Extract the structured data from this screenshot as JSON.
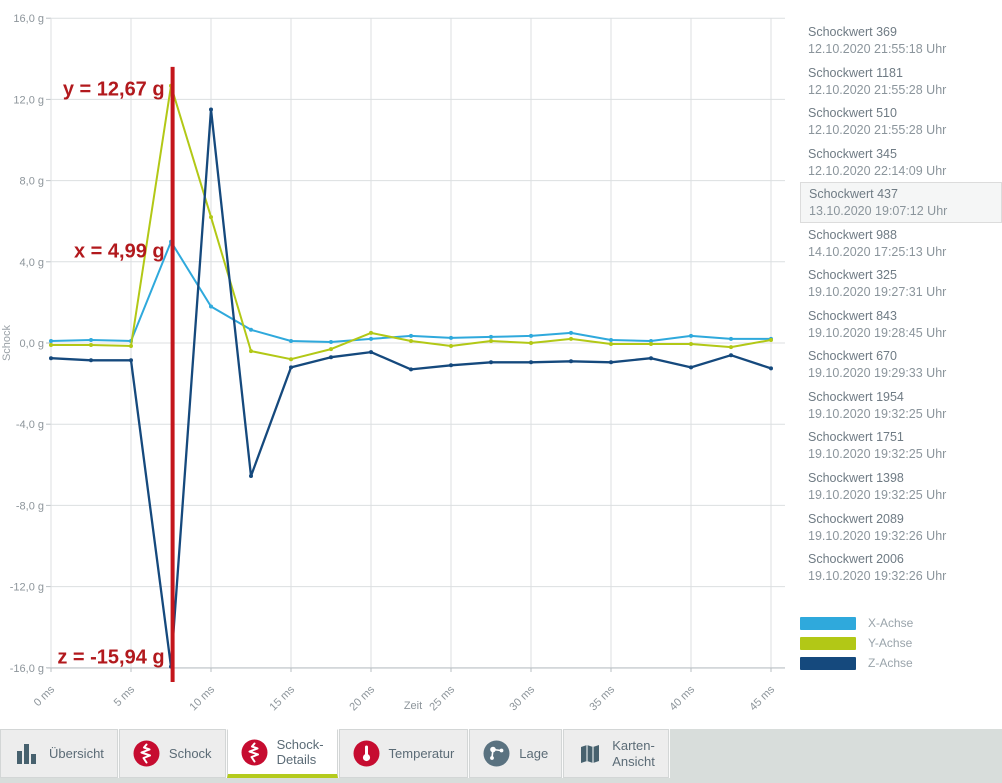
{
  "theme": {
    "accent_green": "#b4cb1d",
    "icon_red": "#c60c30",
    "icon_slate": "#5a7280",
    "icon_bars": "#47616e",
    "annotation_red": "#b2191d",
    "grid_color": "#dcdfe1",
    "axis_color": "#b9bfc3",
    "tick_label_color": "#8d959b"
  },
  "chart_data": {
    "type": "line",
    "title": "",
    "xlabel": "Zeit",
    "ylabel": "Schock",
    "x_unit": "ms",
    "y_unit": "g",
    "xlim": [
      0,
      45
    ],
    "ylim": [
      -16,
      16
    ],
    "grid": true,
    "legend_position": "right-bottom",
    "x_ticks": [
      "0 ms",
      "5 ms",
      "10 ms",
      "15 ms",
      "20 ms",
      "25 ms",
      "30 ms",
      "35 ms",
      "40 ms",
      "45 ms"
    ],
    "y_ticks": [
      "16,0 g",
      "12,0 g",
      "8,0 g",
      "4,0 g",
      "0,0 g",
      "-4,0 g",
      "-8,0 g",
      "-12,0 g",
      "-16,0 g"
    ],
    "y_tick_values": [
      16,
      12,
      8,
      4,
      0,
      -4,
      -8,
      -12,
      -16
    ],
    "x_tick_values": [
      0,
      5,
      10,
      15,
      20,
      25,
      30,
      35,
      40,
      45
    ],
    "x": [
      0,
      2.5,
      5,
      7.5,
      10,
      12.5,
      15,
      17.5,
      20,
      22.5,
      25,
      27.5,
      30,
      32.5,
      35,
      37.5,
      40,
      42.5,
      45
    ],
    "series": [
      {
        "name": "X-Achse",
        "color": "#2fa9dc",
        "stroke_width": 2,
        "values": [
          0.1,
          0.15,
          0.1,
          4.99,
          1.8,
          0.65,
          0.1,
          0.05,
          0.2,
          0.35,
          0.25,
          0.3,
          0.35,
          0.5,
          0.15,
          0.1,
          0.35,
          0.2,
          0.2
        ]
      },
      {
        "name": "Y-Achse",
        "color": "#b2c816",
        "stroke_width": 2,
        "values": [
          -0.1,
          -0.1,
          -0.15,
          12.67,
          6.2,
          -0.4,
          -0.8,
          -0.3,
          0.5,
          0.1,
          -0.15,
          0.1,
          0.0,
          0.2,
          -0.05,
          -0.05,
          -0.05,
          -0.2,
          0.15
        ]
      },
      {
        "name": "Z-Achse",
        "color": "#15497d",
        "stroke_width": 2.3,
        "values": [
          -0.75,
          -0.85,
          -0.85,
          -15.94,
          11.5,
          -6.55,
          -1.2,
          -0.7,
          -0.45,
          -1.3,
          -1.1,
          -0.95,
          -0.95,
          -0.9,
          -0.95,
          -0.75,
          -1.2,
          -0.6,
          -1.25
        ]
      }
    ],
    "annotations": [
      {
        "text": "y = 12,67 g",
        "y_g": 12.2
      },
      {
        "text": "x = 4,99 g",
        "y_g": 4.2
      },
      {
        "text": "z = -15,94 g",
        "y_g": -15.8
      }
    ],
    "marker_line": {
      "x_ms": 7.6,
      "color": "#c4161c",
      "top_g": 13.6,
      "bottom_g": -16.7
    }
  },
  "sidebar": {
    "items": [
      {
        "title": "Schockwert 369",
        "timestamp": "12.10.2020 21:55:18 Uhr",
        "selected": false
      },
      {
        "title": "Schockwert 1181",
        "timestamp": "12.10.2020 21:55:28 Uhr",
        "selected": false
      },
      {
        "title": "Schockwert 510",
        "timestamp": "12.10.2020 21:55:28 Uhr",
        "selected": false
      },
      {
        "title": "Schockwert 345",
        "timestamp": "12.10.2020 22:14:09 Uhr",
        "selected": false
      },
      {
        "title": "Schockwert 437",
        "timestamp": "13.10.2020 19:07:12 Uhr",
        "selected": true
      },
      {
        "title": "Schockwert 988",
        "timestamp": "14.10.2020 17:25:13 Uhr",
        "selected": false
      },
      {
        "title": "Schockwert 325",
        "timestamp": "19.10.2020 19:27:31 Uhr",
        "selected": false
      },
      {
        "title": "Schockwert 843",
        "timestamp": "19.10.2020 19:28:45 Uhr",
        "selected": false
      },
      {
        "title": "Schockwert 670",
        "timestamp": "19.10.2020 19:29:33 Uhr",
        "selected": false
      },
      {
        "title": "Schockwert 1954",
        "timestamp": "19.10.2020 19:32:25 Uhr",
        "selected": false
      },
      {
        "title": "Schockwert 1751",
        "timestamp": "19.10.2020 19:32:25 Uhr",
        "selected": false
      },
      {
        "title": "Schockwert 1398",
        "timestamp": "19.10.2020 19:32:25 Uhr",
        "selected": false
      },
      {
        "title": "Schockwert 2089",
        "timestamp": "19.10.2020 19:32:26 Uhr",
        "selected": false
      },
      {
        "title": "Schockwert 2006",
        "timestamp": "19.10.2020 19:32:26 Uhr",
        "selected": false
      }
    ]
  },
  "tabs": [
    {
      "id": "uebersicht",
      "label": "Übersicht",
      "icon": "bar-chart",
      "active": false
    },
    {
      "id": "schock",
      "label": "Schock",
      "icon": "shock-wave",
      "active": false
    },
    {
      "id": "schock-details",
      "label": "Schock-\nDetails",
      "icon": "shock-wave",
      "active": true
    },
    {
      "id": "temperatur",
      "label": "Temperatur",
      "icon": "thermometer",
      "active": false
    },
    {
      "id": "lage",
      "label": "Lage",
      "icon": "orientation",
      "active": false
    },
    {
      "id": "karten-ansicht",
      "label": "Karten-\nAnsicht",
      "icon": "map",
      "active": false
    }
  ]
}
